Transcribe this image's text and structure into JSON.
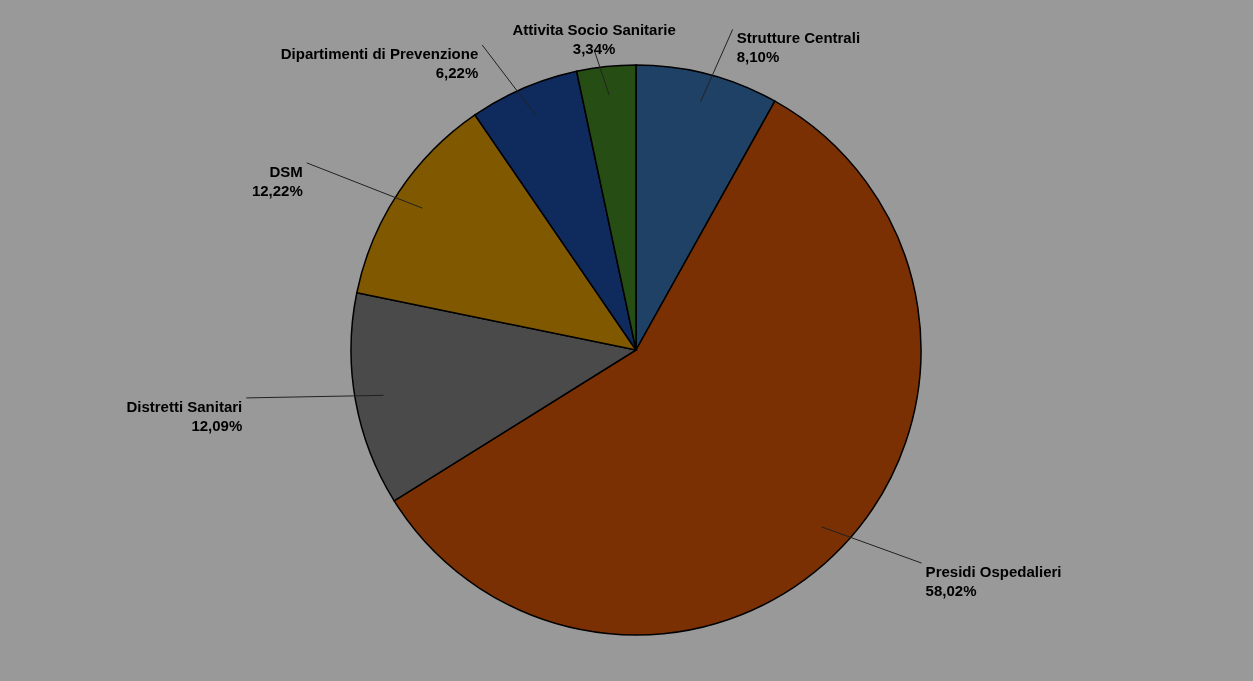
{
  "chart_data": {
    "type": "pie",
    "categories": [
      "Strutture Centrali",
      "Presidi Ospedalieri",
      "Distretti Sanitari",
      "DSM",
      "Dipartimenti  di Prevenzione",
      "Attivita Socio Sanitarie"
    ],
    "values": [
      8.1,
      58.02,
      12.09,
      12.22,
      6.22,
      3.34
    ],
    "value_labels": [
      "8,10%",
      "58,02%",
      "12,09%",
      "12,22%",
      "6,22%",
      "3,34%"
    ],
    "colors": [
      "#1f4166",
      "#7a3003",
      "#4a4a4a",
      "#7f5800",
      "#0f2a5c",
      "#264d13"
    ]
  }
}
